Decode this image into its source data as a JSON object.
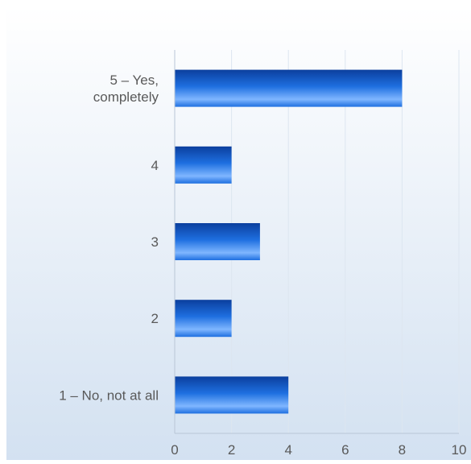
{
  "chart_data": {
    "type": "bar",
    "orientation": "horizontal",
    "categories": [
      "5 – Yes, completely",
      "4",
      "3",
      "2",
      "1 –  No, not at all"
    ],
    "category_label_lines": [
      [
        "5 – Yes,",
        "completely"
      ],
      [
        "4"
      ],
      [
        "3"
      ],
      [
        "2"
      ],
      [
        "1 –  No, not at all"
      ]
    ],
    "values": [
      8,
      2,
      3,
      2,
      4
    ],
    "xlim": [
      0,
      10
    ],
    "xticks": [
      "0",
      "2",
      "4",
      "6",
      "8",
      "10"
    ],
    "title": "",
    "xlabel": "",
    "ylabel": "",
    "grid": true,
    "legend": "none",
    "colors": {
      "bar_dark": "#0b3f9e",
      "bar_mid": "#1e6fe0",
      "bar_light": "#7fb6ff",
      "background_top": "#ffffff",
      "background_bottom": "#d3e1f1",
      "grid": "#dde6f0",
      "axis": "#b9c6d6",
      "label": "#595959"
    }
  }
}
